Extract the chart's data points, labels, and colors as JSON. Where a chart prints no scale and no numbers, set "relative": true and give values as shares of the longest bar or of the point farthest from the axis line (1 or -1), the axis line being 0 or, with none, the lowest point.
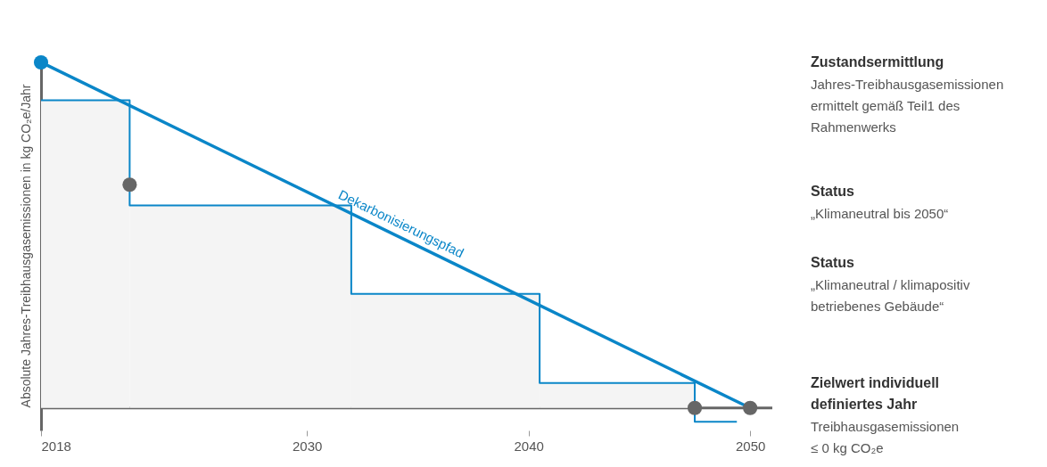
{
  "chart_data": {
    "type": "line",
    "relative": true,
    "ylabel": "Absolute Jahres-Treibhausgasemissionen in kg CO₂e/Jahr",
    "xlim": [
      2018,
      2051
    ],
    "xticks": [
      2018,
      2030,
      2040,
      2050
    ],
    "grid": false,
    "legend": false,
    "series": [
      {
        "type": "area",
        "color": "#f4f4f4",
        "x": [
          2018,
          2022,
          2032,
          2040.5,
          2047.5
        ],
        "values": [
          0.89,
          0.89,
          0.586,
          0.33,
          0.072
        ]
      },
      {
        "type": "step",
        "color": "#0a86c8",
        "x": [
          2018,
          2022,
          2032,
          2040.5,
          2047.5,
          2049.4
        ],
        "values": [
          0.89,
          0.586,
          0.33,
          0.072,
          -0.04,
          -0.04
        ]
      },
      {
        "type": "line",
        "name": "Dekarbonisierungspfad",
        "color": "#0a86c8",
        "x": [
          2018,
          2050
        ],
        "values": [
          1,
          0
        ]
      },
      {
        "type": "scatter",
        "marker": "circle",
        "color": "#0a86c8",
        "x": [
          2018
        ],
        "values": [
          1
        ]
      },
      {
        "type": "scatter",
        "marker": "circle",
        "color": "#666666",
        "x": [
          2022,
          2047.5,
          2050
        ],
        "values": [
          0.646,
          0,
          0
        ]
      }
    ],
    "annotations": [
      "Zustandsermittlung\nJahres-Treibhausgasemissionen\nermittelt gemäß Teil1 des\nRahmenwerks",
      "Status\n„Klimaneutral bis 2050“",
      "Status\n„Klimaneutral / klimapositiv\nbetriebenes Gebäude“",
      "Zielwert individuell\ndefiniertes Jahr\nTreibhausgasemissionen\n≤ 0 kg CO₂e"
    ]
  }
}
